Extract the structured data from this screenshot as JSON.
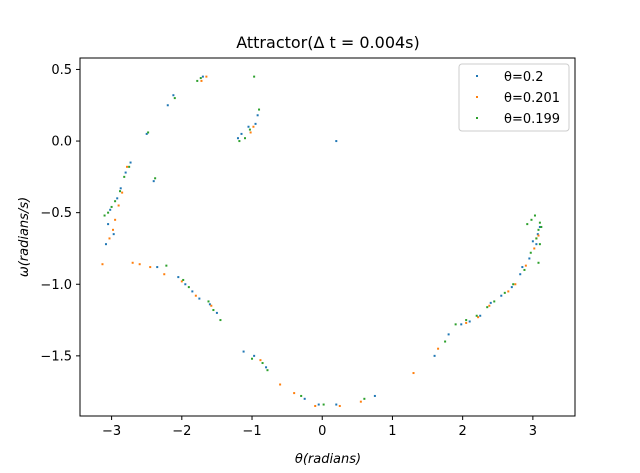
{
  "chart_data": {
    "type": "scatter",
    "title_text": "Attractor(Δ t = 0.004s)",
    "xlabel": "θ(radians)",
    "ylabel": "ω(radians/s)",
    "xlim": [
      -3.45,
      3.6
    ],
    "ylim": [
      -1.92,
      0.58
    ],
    "xticks": [
      -3,
      -2,
      -1,
      0,
      1,
      2,
      3
    ],
    "yticks": [
      0.5,
      0.0,
      -0.5,
      -1.0,
      -1.5
    ],
    "xtick_labels": [
      "−3",
      "−2",
      "−1",
      "0",
      "1",
      "2",
      "3"
    ],
    "ytick_labels": [
      "0.5",
      "0.0",
      "−0.5",
      "−1.0",
      "−1.5"
    ],
    "grid": false,
    "legend_position": "top-right",
    "series": [
      {
        "name": "θ=0.2",
        "color": "#1f77b4",
        "points": [
          [
            -3.08,
            -0.72
          ],
          [
            -3.05,
            -0.58
          ],
          [
            -3.02,
            -0.48
          ],
          [
            -2.97,
            -0.65
          ],
          [
            -2.92,
            -0.4
          ],
          [
            -2.87,
            -0.33
          ],
          [
            -2.8,
            -0.22
          ],
          [
            -2.73,
            -0.15
          ],
          [
            -2.5,
            0.05
          ],
          [
            -2.4,
            -0.28
          ],
          [
            -2.35,
            -0.88
          ],
          [
            -2.2,
            0.25
          ],
          [
            -2.12,
            0.32
          ],
          [
            -2.05,
            -0.95
          ],
          [
            -1.95,
            -1.0
          ],
          [
            -1.85,
            -1.05
          ],
          [
            -1.75,
            -1.1
          ],
          [
            -1.7,
            0.45
          ],
          [
            -1.6,
            -1.14
          ],
          [
            -1.5,
            -1.2
          ],
          [
            -1.2,
            0.02
          ],
          [
            -1.15,
            0.05
          ],
          [
            -1.05,
            0.1
          ],
          [
            -0.95,
            0.12
          ],
          [
            -0.92,
            0.18
          ],
          [
            -1.12,
            -1.47
          ],
          [
            -0.97,
            -1.5
          ],
          [
            -0.8,
            -1.58
          ],
          [
            -0.25,
            -1.8
          ],
          [
            -0.05,
            -1.84
          ],
          [
            0.2,
            -1.84
          ],
          [
            0.2,
            0.0
          ],
          [
            0.75,
            -1.78
          ],
          [
            1.6,
            -1.5
          ],
          [
            1.8,
            -1.35
          ],
          [
            1.98,
            -1.28
          ],
          [
            2.1,
            -1.26
          ],
          [
            2.25,
            -1.22
          ],
          [
            2.4,
            -1.13
          ],
          [
            2.55,
            -1.08
          ],
          [
            2.7,
            -1.02
          ],
          [
            2.82,
            -0.93
          ],
          [
            2.95,
            -0.82
          ],
          [
            3.05,
            -0.72
          ],
          [
            3.07,
            -0.65
          ],
          [
            3.1,
            -0.6
          ],
          [
            3.0,
            -0.7
          ],
          [
            2.85,
            -0.88
          ]
        ]
      },
      {
        "name": "θ=0.201",
        "color": "#ff7f0e",
        "points": [
          [
            -3.13,
            -0.86
          ],
          [
            -3.03,
            -0.68
          ],
          [
            -2.98,
            -0.62
          ],
          [
            -2.95,
            -0.55
          ],
          [
            -2.9,
            -0.45
          ],
          [
            -2.85,
            -0.36
          ],
          [
            -2.78,
            -0.18
          ],
          [
            -2.7,
            -0.85
          ],
          [
            -2.6,
            -0.86
          ],
          [
            -2.45,
            -0.88
          ],
          [
            -2.25,
            -0.93
          ],
          [
            -2.0,
            -0.98
          ],
          [
            -1.8,
            -1.08
          ],
          [
            -1.72,
            0.42
          ],
          [
            -1.65,
            0.45
          ],
          [
            -1.58,
            -1.15
          ],
          [
            -1.02,
            0.06
          ],
          [
            -0.98,
            0.1
          ],
          [
            -0.88,
            -1.53
          ],
          [
            -0.6,
            -1.7
          ],
          [
            -0.4,
            -1.76
          ],
          [
            -0.1,
            -1.85
          ],
          [
            0.25,
            -1.85
          ],
          [
            0.55,
            -1.82
          ],
          [
            1.3,
            -1.62
          ],
          [
            1.65,
            -1.45
          ],
          [
            2.05,
            -1.27
          ],
          [
            2.22,
            -1.23
          ],
          [
            2.38,
            -1.15
          ],
          [
            2.65,
            -1.05
          ],
          [
            2.75,
            -1.0
          ],
          [
            2.9,
            -0.87
          ],
          [
            3.02,
            -0.75
          ],
          [
            3.05,
            -0.68
          ],
          [
            3.08,
            -0.66
          ]
        ]
      },
      {
        "name": "θ=0.199",
        "color": "#2ca02c",
        "points": [
          [
            -3.1,
            -0.52
          ],
          [
            -3.05,
            -0.5
          ],
          [
            -3.0,
            -0.46
          ],
          [
            -2.95,
            -0.42
          ],
          [
            -2.88,
            -0.35
          ],
          [
            -2.82,
            -0.25
          ],
          [
            -2.75,
            -0.18
          ],
          [
            -2.48,
            0.06
          ],
          [
            -2.38,
            -0.26
          ],
          [
            -2.22,
            -0.87
          ],
          [
            -2.1,
            0.3
          ],
          [
            -1.98,
            -0.97
          ],
          [
            -1.9,
            -1.02
          ],
          [
            -1.78,
            0.42
          ],
          [
            -1.73,
            0.44
          ],
          [
            -1.62,
            -1.12
          ],
          [
            -1.55,
            -1.18
          ],
          [
            -1.45,
            -1.25
          ],
          [
            -1.18,
            0.0
          ],
          [
            -1.1,
            0.02
          ],
          [
            -1.03,
            0.08
          ],
          [
            -0.97,
            0.45
          ],
          [
            -0.9,
            0.22
          ],
          [
            -1.0,
            -1.52
          ],
          [
            -0.85,
            -1.55
          ],
          [
            -0.78,
            -1.6
          ],
          [
            -0.3,
            -1.78
          ],
          [
            0.02,
            -1.84
          ],
          [
            0.6,
            -1.8
          ],
          [
            1.75,
            -1.4
          ],
          [
            1.9,
            -1.28
          ],
          [
            2.05,
            -1.25
          ],
          [
            2.2,
            -1.22
          ],
          [
            2.35,
            -1.16
          ],
          [
            2.45,
            -1.12
          ],
          [
            2.6,
            -1.06
          ],
          [
            2.72,
            -1.0
          ],
          [
            2.88,
            -0.9
          ],
          [
            2.97,
            -0.78
          ],
          [
            3.05,
            -0.68
          ],
          [
            3.08,
            -0.62
          ],
          [
            3.1,
            -0.57
          ],
          [
            3.12,
            -0.6
          ],
          [
            2.98,
            -0.55
          ],
          [
            3.03,
            -0.52
          ],
          [
            2.92,
            -0.58
          ],
          [
            3.1,
            -0.72
          ],
          [
            3.08,
            -0.85
          ]
        ]
      }
    ]
  }
}
